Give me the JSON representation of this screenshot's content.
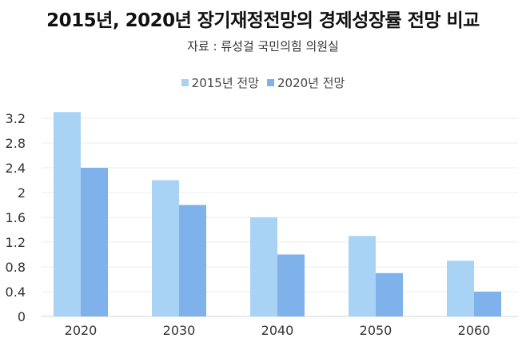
{
  "chart_data": {
    "type": "bar",
    "title": "2015년, 2020년 장기재정전망의 경제성장률 전망 비교",
    "subtitle": "자료 : 류성걸 국민의힘 의원실",
    "categories": [
      "2020",
      "2030",
      "2040",
      "2050",
      "2060"
    ],
    "series": [
      {
        "name": "2015년 전망",
        "values": [
          3.3,
          2.2,
          1.6,
          1.3,
          0.9
        ],
        "color": "#a9d3f5"
      },
      {
        "name": "2020년 전망",
        "values": [
          2.4,
          1.8,
          1.0,
          0.7,
          0.4
        ],
        "color": "#7fb2ea"
      }
    ],
    "yticks": [
      "0",
      "0.4",
      "0.8",
      "1.2",
      "1.6",
      "2",
      "2.4",
      "2.8",
      "3.2"
    ],
    "ylim": [
      0,
      3.2
    ],
    "legend_position": "top-center",
    "grid": true
  }
}
